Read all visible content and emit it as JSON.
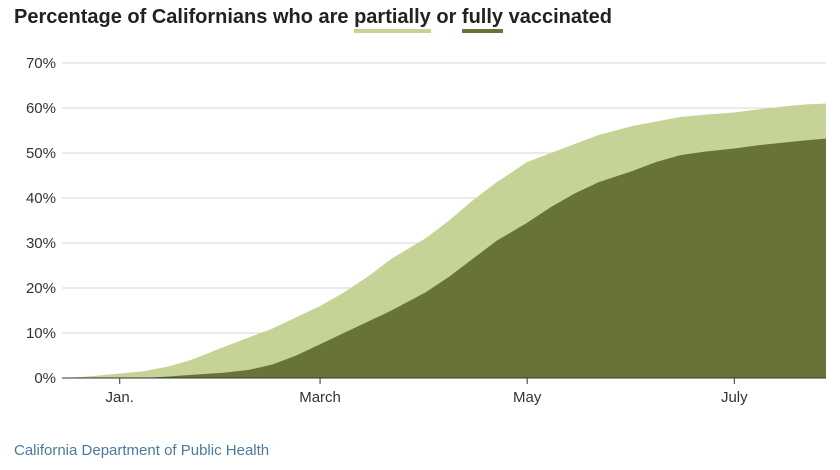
{
  "title": {
    "prefix": "Percentage of Californians who are ",
    "partial_word": "partially",
    "middle": " or ",
    "full_word": "fully",
    "suffix": " vaccinated"
  },
  "source": "California Department of Public Health",
  "colors": {
    "partial": "#c6d396",
    "full": "#687337",
    "grid": "#d6d6d6",
    "axis": "#333333",
    "source_text": "#4b7a9e"
  },
  "chart_data": {
    "type": "area",
    "title": "Percentage of Californians who are partially or fully vaccinated",
    "xlabel": "",
    "ylabel": "",
    "ylim": [
      0,
      70
    ],
    "xlim": [
      "2020-12-15",
      "2021-07-28"
    ],
    "yticks": [
      {
        "value": 0,
        "label": "0%"
      },
      {
        "value": 10,
        "label": "10%"
      },
      {
        "value": 20,
        "label": "20%"
      },
      {
        "value": 30,
        "label": "30%"
      },
      {
        "value": 40,
        "label": "40%"
      },
      {
        "value": 50,
        "label": "50%"
      },
      {
        "value": 60,
        "label": "60%"
      },
      {
        "value": 70,
        "label": "70%"
      }
    ],
    "xticks": [
      {
        "date": "2021-01-01",
        "label": "Jan."
      },
      {
        "date": "2021-03-01",
        "label": "March"
      },
      {
        "date": "2021-05-01",
        "label": "May"
      },
      {
        "date": "2021-07-01",
        "label": "July"
      }
    ],
    "grid": true,
    "series": [
      {
        "name": "partially",
        "points": [
          {
            "x": "2020-12-15",
            "y": 0.0
          },
          {
            "x": "2020-12-22",
            "y": 0.3
          },
          {
            "x": "2021-01-01",
            "y": 1.0
          },
          {
            "x": "2021-01-08",
            "y": 1.5
          },
          {
            "x": "2021-01-15",
            "y": 2.5
          },
          {
            "x": "2021-01-22",
            "y": 4.0
          },
          {
            "x": "2021-02-01",
            "y": 7.0
          },
          {
            "x": "2021-02-08",
            "y": 9.0
          },
          {
            "x": "2021-02-15",
            "y": 11.0
          },
          {
            "x": "2021-02-22",
            "y": 13.5
          },
          {
            "x": "2021-03-01",
            "y": 16.0
          },
          {
            "x": "2021-03-08",
            "y": 19.0
          },
          {
            "x": "2021-03-15",
            "y": 22.5
          },
          {
            "x": "2021-03-22",
            "y": 26.5
          },
          {
            "x": "2021-04-01",
            "y": 31.0
          },
          {
            "x": "2021-04-08",
            "y": 35.0
          },
          {
            "x": "2021-04-15",
            "y": 39.5
          },
          {
            "x": "2021-04-22",
            "y": 43.5
          },
          {
            "x": "2021-05-01",
            "y": 48.0
          },
          {
            "x": "2021-05-08",
            "y": 50.0
          },
          {
            "x": "2021-05-15",
            "y": 52.0
          },
          {
            "x": "2021-05-22",
            "y": 54.0
          },
          {
            "x": "2021-06-01",
            "y": 56.0
          },
          {
            "x": "2021-06-08",
            "y": 57.0
          },
          {
            "x": "2021-06-15",
            "y": 58.0
          },
          {
            "x": "2021-06-22",
            "y": 58.5
          },
          {
            "x": "2021-07-01",
            "y": 59.0
          },
          {
            "x": "2021-07-08",
            "y": 59.7
          },
          {
            "x": "2021-07-15",
            "y": 60.3
          },
          {
            "x": "2021-07-22",
            "y": 60.8
          },
          {
            "x": "2021-07-28",
            "y": 61.0
          }
        ]
      },
      {
        "name": "fully",
        "points": [
          {
            "x": "2020-12-15",
            "y": 0.0
          },
          {
            "x": "2021-01-08",
            "y": 0.0
          },
          {
            "x": "2021-01-15",
            "y": 0.3
          },
          {
            "x": "2021-01-22",
            "y": 0.7
          },
          {
            "x": "2021-02-01",
            "y": 1.2
          },
          {
            "x": "2021-02-08",
            "y": 1.8
          },
          {
            "x": "2021-02-15",
            "y": 3.0
          },
          {
            "x": "2021-02-22",
            "y": 5.0
          },
          {
            "x": "2021-03-01",
            "y": 7.5
          },
          {
            "x": "2021-03-08",
            "y": 10.0
          },
          {
            "x": "2021-03-15",
            "y": 12.5
          },
          {
            "x": "2021-03-22",
            "y": 15.0
          },
          {
            "x": "2021-04-01",
            "y": 19.0
          },
          {
            "x": "2021-04-08",
            "y": 22.5
          },
          {
            "x": "2021-04-15",
            "y": 26.5
          },
          {
            "x": "2021-04-22",
            "y": 30.5
          },
          {
            "x": "2021-05-01",
            "y": 34.5
          },
          {
            "x": "2021-05-08",
            "y": 38.0
          },
          {
            "x": "2021-05-15",
            "y": 41.0
          },
          {
            "x": "2021-05-22",
            "y": 43.5
          },
          {
            "x": "2021-06-01",
            "y": 46.0
          },
          {
            "x": "2021-06-08",
            "y": 48.0
          },
          {
            "x": "2021-06-15",
            "y": 49.5
          },
          {
            "x": "2021-06-22",
            "y": 50.3
          },
          {
            "x": "2021-07-01",
            "y": 51.0
          },
          {
            "x": "2021-07-08",
            "y": 51.7
          },
          {
            "x": "2021-07-15",
            "y": 52.3
          },
          {
            "x": "2021-07-22",
            "y": 52.8
          },
          {
            "x": "2021-07-28",
            "y": 53.2
          }
        ]
      }
    ]
  }
}
